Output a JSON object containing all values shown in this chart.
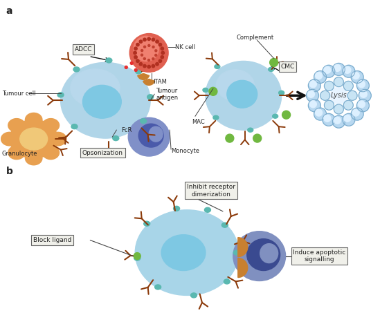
{
  "background_color": "#ffffff",
  "figure_width": 5.49,
  "figure_height": 4.66,
  "dpi": 100,
  "panel_a_label": "a",
  "panel_b_label": "b",
  "label_adcc": "ADCC",
  "label_opsonization": "Opsonization",
  "label_cmc": "CMC",
  "label_lysis": "Lysis",
  "label_nk_cell": "NK cell",
  "label_itam": "ITAM",
  "label_tumour_cell": "Tumour cell",
  "label_tumour_antigen": "Tumour\nantigen",
  "label_fcr": "FcR",
  "label_monocyte": "Monocyte",
  "label_granulocyte": "Granulocyte",
  "label_complement": "Complement",
  "label_mac": "MAC",
  "label_block_ligand": "Block ligand",
  "label_inhibit_receptor": "Inhibit receptor\ndimerization",
  "label_induce_apoptotic": "Induce apoptotic\nsignalling",
  "color_tc_outer": "#a8d8ea",
  "color_tc_inner": "#7ec8e3",
  "color_nk": "#e8534a",
  "color_nk_dark": "#c83025",
  "color_gran_outer": "#e8a860",
  "color_gran_inner": "#f0c080",
  "color_mono": "#8090c8",
  "color_mono_nuc": "#4a5aaa",
  "color_receptor": "#5ab8b0",
  "color_ab": "#8b3a0a",
  "color_ab2": "#a05020",
  "color_complement": "#70b840",
  "color_lysis_dot": "#90b8d8",
  "color_lysis_inner": "#d8eef8",
  "color_lysis_text": "#555555",
  "color_apo": "#8090c0",
  "color_apo_nuc": "#3a4a90",
  "color_orange": "#d08030",
  "color_green_small": "#70b840",
  "color_text": "#222222",
  "color_box_fill": "#f0f0ea",
  "color_box_edge": "#666666",
  "color_arrow": "#111111"
}
